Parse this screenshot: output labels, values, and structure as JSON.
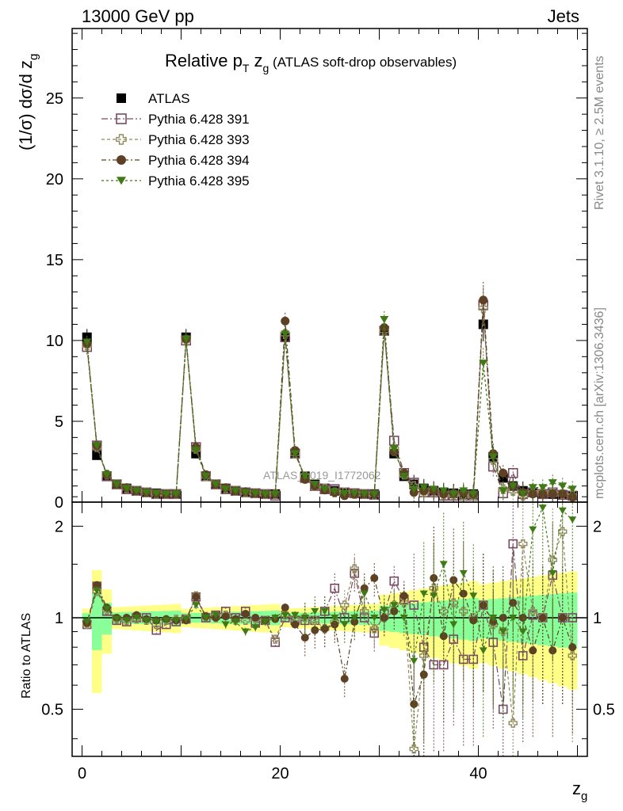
{
  "header": {
    "left": "13000 GeV pp",
    "right": "Jets"
  },
  "title": {
    "main": "Relative p",
    "main_sub": "T",
    "var": " z",
    "var_sub": "g",
    "rest": " (ATLAS soft-drop observables)"
  },
  "axes": {
    "ylabel_main": "(1/σ) dσ/d z",
    "ylabel_sub": "g",
    "ylabel_ratio": "Ratio to ATLAS",
    "xlabel": "z",
    "xlabel_sub": "g",
    "x_ticks": [
      "0",
      "20",
      "40"
    ],
    "y_ticks_main": [
      "0",
      "5",
      "10",
      "15",
      "20",
      "25"
    ],
    "y_ticks_ratio": [
      "0.5",
      "1",
      "2"
    ]
  },
  "side_labels": {
    "rivet": "Rivet 3.1.10, ≥ 2.5M events",
    "mcplots": "mcplots.cern.ch [arXiv:1306.3436]"
  },
  "watermark": "ATLAS_2019_I1772062",
  "legend": [
    {
      "name": "ATLAS",
      "marker": "filled-square",
      "color": "#000000"
    },
    {
      "name": "Pythia 6.428 391",
      "marker": "open-square",
      "color": "#7a4a62"
    },
    {
      "name": "Pythia 6.428 393",
      "marker": "open-cross",
      "color": "#8f8a5a"
    },
    {
      "name": "Pythia 6.428 394",
      "marker": "filled-circle",
      "color": "#5e4124"
    },
    {
      "name": "Pythia 6.428 395",
      "marker": "filled-triangle",
      "color": "#3f7a14"
    }
  ],
  "chart_data": {
    "type": "scatter",
    "x": [
      0.5,
      1.5,
      2.5,
      3.5,
      4.5,
      5.5,
      6.5,
      7.5,
      8.5,
      9.5,
      10.5,
      11.5,
      12.5,
      13.5,
      14.5,
      15.5,
      16.5,
      17.5,
      18.5,
      19.5,
      20.5,
      21.5,
      22.5,
      23.5,
      24.5,
      25.5,
      26.5,
      27.5,
      28.5,
      29.5,
      30.5,
      31.5,
      32.5,
      33.5,
      34.5,
      35.5,
      36.5,
      37.5,
      38.5,
      39.5,
      40.5,
      41.5,
      42.5,
      43.5,
      44.5,
      45.5,
      46.5,
      47.5,
      48.5,
      49.5
    ],
    "xlim": [
      -1,
      51
    ],
    "ylim_main": [
      0,
      29.3
    ],
    "ylim_ratio": [
      0.35,
      2.4
    ],
    "ratio_log_scale": true,
    "series": [
      {
        "name": "ATLAS",
        "values": [
          10.2,
          2.9,
          1.6,
          1.1,
          0.85,
          0.7,
          0.6,
          0.55,
          0.5,
          0.5,
          10.2,
          3.0,
          1.6,
          1.1,
          0.85,
          0.7,
          0.6,
          0.55,
          0.5,
          0.5,
          10.2,
          3.0,
          1.6,
          1.1,
          0.85,
          0.7,
          0.6,
          0.55,
          0.5,
          0.5,
          10.6,
          3.0,
          1.6,
          1.1,
          0.85,
          0.7,
          0.6,
          0.55,
          0.5,
          0.5,
          11.0,
          2.8,
          1.5,
          1.0,
          0.7,
          0.6,
          0.5,
          0.5,
          0.45,
          0.4
        ]
      },
      {
        "name": "Pythia 6.428 391",
        "values": [
          9.6,
          3.5,
          1.6,
          1.1,
          0.8,
          0.7,
          0.6,
          0.5,
          0.5,
          0.5,
          10.0,
          3.4,
          1.6,
          1.1,
          0.8,
          0.7,
          0.6,
          0.55,
          0.5,
          0.4,
          10.2,
          3.0,
          1.5,
          1.0,
          0.8,
          0.8,
          0.6,
          0.55,
          0.5,
          0.45,
          10.6,
          3.8,
          1.8,
          1.2,
          0.6,
          0.6,
          0.4,
          0.4,
          0.4,
          0.4,
          12.2,
          2.2,
          0.55,
          1.8,
          0.5,
          0.6,
          0.5,
          0.6,
          0.45,
          0.4
        ]
      },
      {
        "name": "Pythia 6.428 393",
        "values": [
          9.7,
          3.4,
          1.7,
          1.1,
          0.85,
          0.7,
          0.6,
          0.5,
          0.5,
          0.5,
          10.0,
          3.3,
          1.6,
          1.1,
          0.85,
          0.7,
          0.6,
          0.55,
          0.5,
          0.5,
          10.4,
          3.0,
          1.6,
          1.0,
          0.85,
          0.6,
          0.6,
          0.5,
          0.5,
          0.45,
          10.6,
          3.3,
          1.7,
          1.0,
          0.6,
          0.7,
          0.45,
          0.45,
          0.4,
          0.4,
          12.0,
          2.6,
          0.8,
          0.7,
          0.4,
          0.6,
          0.6,
          0.6,
          0.5,
          0.4
        ]
      },
      {
        "name": "Pythia 6.428 394",
        "values": [
          9.8,
          3.5,
          1.7,
          1.1,
          0.9,
          0.7,
          0.6,
          0.55,
          0.5,
          0.5,
          10.1,
          3.4,
          1.7,
          1.1,
          0.9,
          0.7,
          0.65,
          0.55,
          0.5,
          0.5,
          11.2,
          3.2,
          1.4,
          1.0,
          0.75,
          0.6,
          0.4,
          0.5,
          0.5,
          0.5,
          10.8,
          3.1,
          1.8,
          0.6,
          0.7,
          0.7,
          0.5,
          0.55,
          0.6,
          0.5,
          12.5,
          3.0,
          1.8,
          1.0,
          0.6,
          0.5,
          0.5,
          0.5,
          0.5,
          0.3
        ]
      },
      {
        "name": "Pythia 6.428 395",
        "values": [
          9.9,
          3.5,
          1.7,
          1.1,
          0.85,
          0.7,
          0.6,
          0.55,
          0.5,
          0.5,
          10.1,
          3.2,
          1.6,
          1.1,
          0.8,
          0.7,
          0.6,
          0.55,
          0.5,
          0.5,
          10.4,
          3.0,
          1.6,
          1.1,
          0.8,
          0.65,
          0.55,
          0.55,
          0.5,
          0.5,
          11.3,
          3.3,
          1.6,
          0.8,
          0.9,
          0.8,
          0.7,
          0.5,
          0.7,
          0.5,
          8.6,
          2.8,
          0.7,
          1.0,
          0.5,
          0.9,
          0.9,
          1.2,
          1.0,
          0.8
        ]
      }
    ],
    "ratio_series": [
      {
        "name": "Pythia 6.428 391",
        "values": [
          0.95,
          1.27,
          1.05,
          0.98,
          0.97,
          1.0,
          1.0,
          0.91,
          0.95,
          0.97,
          0.99,
          1.17,
          1.0,
          1.02,
          1.05,
          1.0,
          1.05,
          0.96,
          0.98,
          0.83,
          1.0,
          0.98,
          0.98,
          0.98,
          1.05,
          1.25,
          1.0,
          1.4,
          1.0,
          0.89,
          1.03,
          1.32,
          1.15,
          1.1,
          0.8,
          0.7,
          0.7,
          0.85,
          0.73,
          0.73,
          1.1,
          0.83,
          0.5,
          1.75,
          0.75,
          1.02,
          1.0,
          1.38,
          1.0,
          1.0
        ]
      },
      {
        "name": "Pythia 6.428 393",
        "values": [
          0.95,
          1.22,
          1.06,
          0.99,
          0.98,
          0.99,
          0.98,
          0.95,
          0.98,
          0.99,
          0.99,
          1.18,
          1.01,
          1.0,
          1.02,
          0.98,
          0.98,
          0.99,
          0.98,
          0.85,
          1.02,
          0.99,
          1.0,
          0.98,
          0.92,
          0.97,
          1.1,
          1.45,
          1.05,
          0.92,
          1.0,
          1.1,
          1.12,
          0.37,
          0.75,
          1.25,
          1.05,
          1.12,
          1.05,
          1.0,
          1.1,
          0.95,
          0.9,
          0.45,
          1.75,
          1.05,
          1.0,
          1.55,
          1.92,
          0.75
        ]
      },
      {
        "name": "Pythia 6.428 394",
        "values": [
          0.96,
          1.28,
          1.08,
          1.0,
          1.0,
          1.02,
          0.99,
          0.98,
          0.99,
          0.98,
          0.98,
          1.17,
          1.01,
          1.0,
          1.01,
          0.99,
          1.03,
          1.0,
          0.98,
          0.99,
          1.08,
          0.95,
          0.86,
          0.91,
          0.92,
          0.95,
          0.63,
          0.97,
          1.25,
          1.35,
          1.0,
          1.05,
          1.18,
          0.52,
          0.65,
          1.35,
          0.87,
          1.33,
          1.2,
          0.98,
          1.1,
          0.97,
          1.0,
          1.12,
          1.0,
          0.78,
          1.0,
          0.78,
          1.0,
          0.8
        ]
      },
      {
        "name": "Pythia 6.428 395",
        "values": [
          0.97,
          1.23,
          1.07,
          0.99,
          0.98,
          1.0,
          0.98,
          0.97,
          0.98,
          0.98,
          0.99,
          1.1,
          1.0,
          1.02,
          0.95,
          0.97,
          0.9,
          0.93,
          0.97,
          1.0,
          1.02,
          1.02,
          1.0,
          1.05,
          1.05,
          1.0,
          0.95,
          1.0,
          1.2,
          1.0,
          1.06,
          1.1,
          1.0,
          0.72,
          1.2,
          1.18,
          1.5,
          0.95,
          1.4,
          1.18,
          0.78,
          1.0,
          0.9,
          1.0,
          0.9,
          1.95,
          2.3,
          1.4,
          2.25,
          2.1
        ]
      }
    ]
  }
}
